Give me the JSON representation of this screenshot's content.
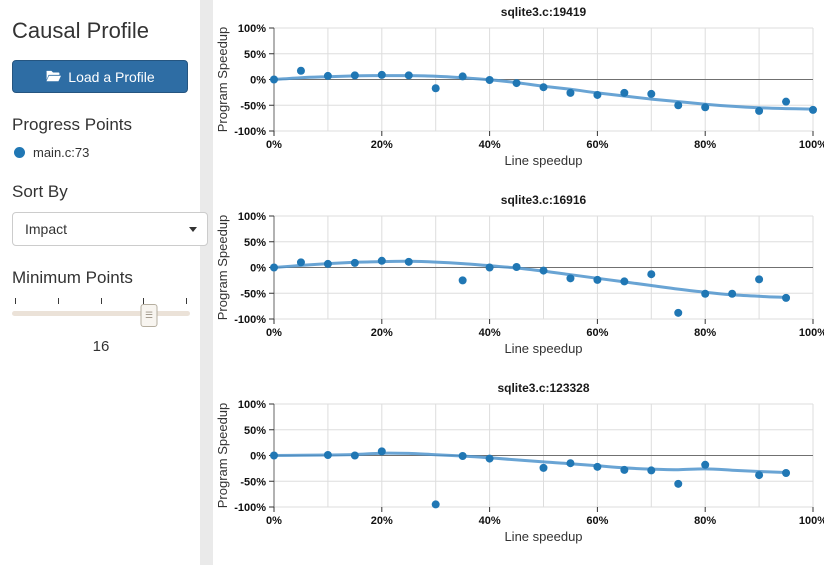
{
  "sidebar": {
    "title": "Causal Profile",
    "load_button": {
      "label": "Load a Profile",
      "icon": "folder-open-icon"
    },
    "progress_points": {
      "heading": "Progress Points",
      "items": [
        {
          "label": "main.c:73",
          "color": "#2077b4"
        }
      ]
    },
    "sort_by": {
      "heading": "Sort By",
      "selected": "Impact"
    },
    "minimum_points": {
      "heading": "Minimum Points",
      "value": "16",
      "slider_percent": 77,
      "tick_count": 5
    }
  },
  "colors": {
    "button": "#2e6da4",
    "point": "#2077b4",
    "trend_line": "#4f94cd",
    "grid": "#dddddd",
    "zero_line": "#707070",
    "axis": "#666666",
    "tick": "#333333"
  },
  "chart_data": [
    {
      "type": "scatter",
      "title": "sqlite3.c:19419",
      "xlabel": "Line speedup",
      "ylabel": "Program Speedup",
      "xlim": [
        0,
        100
      ],
      "ylim": [
        -100,
        100
      ],
      "x_tick_values": [
        0,
        20,
        40,
        60,
        80,
        100
      ],
      "x_tick_labels": [
        "0%",
        "20%",
        "40%",
        "60%",
        "80%",
        "100%"
      ],
      "y_tick_values": [
        100,
        50,
        0,
        -50,
        -100
      ],
      "y_tick_labels": [
        "100%",
        "50%",
        "0%",
        "-50%",
        "-100%"
      ],
      "grid_x_step": 10,
      "grid": true,
      "points": [
        [
          0,
          0
        ],
        [
          5,
          17
        ],
        [
          10,
          7
        ],
        [
          15,
          8
        ],
        [
          20,
          9
        ],
        [
          25,
          8
        ],
        [
          30,
          -17
        ],
        [
          35,
          6
        ],
        [
          40,
          -1
        ],
        [
          45,
          -7
        ],
        [
          50,
          -15
        ],
        [
          55,
          -26
        ],
        [
          60,
          -30
        ],
        [
          65,
          -26
        ],
        [
          70,
          -28
        ],
        [
          75,
          -50
        ],
        [
          80,
          -54
        ],
        [
          90,
          -61
        ],
        [
          95,
          -43
        ],
        [
          100,
          -59
        ]
      ],
      "trend": [
        [
          0,
          0
        ],
        [
          5,
          3.5
        ],
        [
          10,
          5.5
        ],
        [
          15,
          7
        ],
        [
          20,
          7.5
        ],
        [
          25,
          7.5
        ],
        [
          30,
          6.5
        ],
        [
          35,
          3.5
        ],
        [
          40,
          -0.5
        ],
        [
          45,
          -6
        ],
        [
          50,
          -13
        ],
        [
          55,
          -19
        ],
        [
          60,
          -26
        ],
        [
          65,
          -32
        ],
        [
          70,
          -38
        ],
        [
          75,
          -43
        ],
        [
          80,
          -48
        ],
        [
          85,
          -52
        ],
        [
          90,
          -55
        ],
        [
          95,
          -56.5
        ],
        [
          100,
          -57.5
        ]
      ]
    },
    {
      "type": "scatter",
      "title": "sqlite3.c:16916",
      "xlabel": "Line speedup",
      "ylabel": "Program Speedup",
      "xlim": [
        0,
        100
      ],
      "ylim": [
        -100,
        100
      ],
      "x_tick_values": [
        0,
        20,
        40,
        60,
        80,
        100
      ],
      "x_tick_labels": [
        "0%",
        "20%",
        "40%",
        "60%",
        "80%",
        "100%"
      ],
      "y_tick_values": [
        100,
        50,
        0,
        -50,
        -100
      ],
      "y_tick_labels": [
        "100%",
        "50%",
        "0%",
        "-50%",
        "-100%"
      ],
      "grid_x_step": 10,
      "grid": true,
      "points": [
        [
          0,
          0
        ],
        [
          5,
          10
        ],
        [
          10,
          7
        ],
        [
          15,
          9
        ],
        [
          20,
          13
        ],
        [
          25,
          11
        ],
        [
          35,
          -25
        ],
        [
          40,
          0
        ],
        [
          45,
          1
        ],
        [
          50,
          -6
        ],
        [
          55,
          -21
        ],
        [
          60,
          -24
        ],
        [
          65,
          -27
        ],
        [
          70,
          -13
        ],
        [
          75,
          -88
        ],
        [
          80,
          -51
        ],
        [
          85,
          -51
        ],
        [
          90,
          -23
        ],
        [
          95,
          -59
        ]
      ],
      "trend": [
        [
          0,
          0
        ],
        [
          5,
          4
        ],
        [
          10,
          7.5
        ],
        [
          15,
          10
        ],
        [
          20,
          11.5
        ],
        [
          25,
          12
        ],
        [
          30,
          10.5
        ],
        [
          35,
          7.5
        ],
        [
          40,
          3.5
        ],
        [
          45,
          -1
        ],
        [
          50,
          -7
        ],
        [
          55,
          -14
        ],
        [
          60,
          -21
        ],
        [
          65,
          -28
        ],
        [
          70,
          -35
        ],
        [
          75,
          -42
        ],
        [
          80,
          -48
        ],
        [
          85,
          -53
        ],
        [
          90,
          -56
        ],
        [
          95,
          -58
        ]
      ]
    },
    {
      "type": "scatter",
      "title": "sqlite3.c:123328",
      "xlabel": "Line speedup",
      "ylabel": "Program Speedup",
      "xlim": [
        0,
        100
      ],
      "ylim": [
        -100,
        100
      ],
      "x_tick_values": [
        0,
        20,
        40,
        60,
        80,
        100
      ],
      "x_tick_labels": [
        "0%",
        "20%",
        "40%",
        "60%",
        "80%",
        "100%"
      ],
      "y_tick_values": [
        100,
        50,
        0,
        -50,
        -100
      ],
      "y_tick_labels": [
        "100%",
        "50%",
        "0%",
        "-50%",
        "-100%"
      ],
      "grid_x_step": 10,
      "grid": true,
      "points": [
        [
          0,
          0
        ],
        [
          10,
          1
        ],
        [
          15,
          0
        ],
        [
          20,
          8
        ],
        [
          30,
          -95
        ],
        [
          35,
          -1
        ],
        [
          40,
          -6
        ],
        [
          50,
          -24
        ],
        [
          55,
          -15
        ],
        [
          60,
          -22
        ],
        [
          65,
          -28
        ],
        [
          70,
          -29
        ],
        [
          75,
          -55
        ],
        [
          80,
          -18
        ],
        [
          90,
          -38
        ],
        [
          95,
          -34
        ]
      ],
      "trend": [
        [
          0,
          0
        ],
        [
          5,
          0.5
        ],
        [
          10,
          1
        ],
        [
          15,
          2
        ],
        [
          20,
          4.5
        ],
        [
          25,
          4
        ],
        [
          30,
          1.5
        ],
        [
          35,
          -1
        ],
        [
          40,
          -4.5
        ],
        [
          45,
          -8.5
        ],
        [
          50,
          -12.5
        ],
        [
          55,
          -16
        ],
        [
          60,
          -20
        ],
        [
          65,
          -24
        ],
        [
          70,
          -26.5
        ],
        [
          75,
          -27.5
        ],
        [
          80,
          -26
        ],
        [
          85,
          -28.5
        ],
        [
          90,
          -31
        ],
        [
          95,
          -33
        ]
      ]
    }
  ]
}
